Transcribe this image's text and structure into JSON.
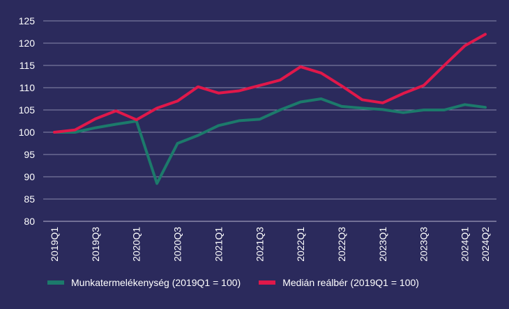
{
  "chart_data": {
    "type": "line",
    "x": [
      "2019Q1",
      "2019Q2",
      "2019Q3",
      "2019Q4",
      "2020Q1",
      "2020Q2",
      "2020Q3",
      "2020Q4",
      "2021Q1",
      "2021Q2",
      "2021Q3",
      "2021Q4",
      "2022Q1",
      "2022Q2",
      "2022Q3",
      "2022Q4",
      "2023Q1",
      "2023Q2",
      "2023Q3",
      "2023Q4",
      "2024Q1",
      "2024Q2"
    ],
    "x_tick_labels": [
      "2019Q1",
      "2019Q3",
      "2020Q1",
      "2020Q3",
      "2021Q1",
      "2021Q3",
      "2022Q1",
      "2022Q3",
      "2023Q1",
      "2023Q3",
      "2024Q1",
      "2024Q2"
    ],
    "series": [
      {
        "name": "Munkatermelékenység (2019Q1 = 100)",
        "color": "#1c7a6b",
        "values": [
          100,
          100,
          101,
          101.8,
          102.5,
          88.5,
          97.5,
          99.3,
          101.5,
          102.6,
          102.9,
          105,
          106.8,
          107.5,
          105.8,
          105.4,
          105.1,
          104.4,
          105,
          105,
          106.2,
          105.6
        ]
      },
      {
        "name": "Medián reálbér (2019Q1 = 100)",
        "color": "#e0184a",
        "values": [
          100,
          100.5,
          103,
          104.8,
          102.8,
          105.4,
          107,
          110.2,
          108.8,
          109.3,
          110.5,
          111.7,
          114.7,
          113.3,
          110.4,
          107.3,
          106.6,
          108.7,
          110.5,
          115,
          119.4,
          122
        ]
      }
    ],
    "y_ticks": [
      80,
      85,
      90,
      95,
      100,
      105,
      110,
      115,
      120,
      125
    ],
    "ylim": [
      80,
      125
    ],
    "grid": true,
    "legend_position": "bottom-left"
  }
}
